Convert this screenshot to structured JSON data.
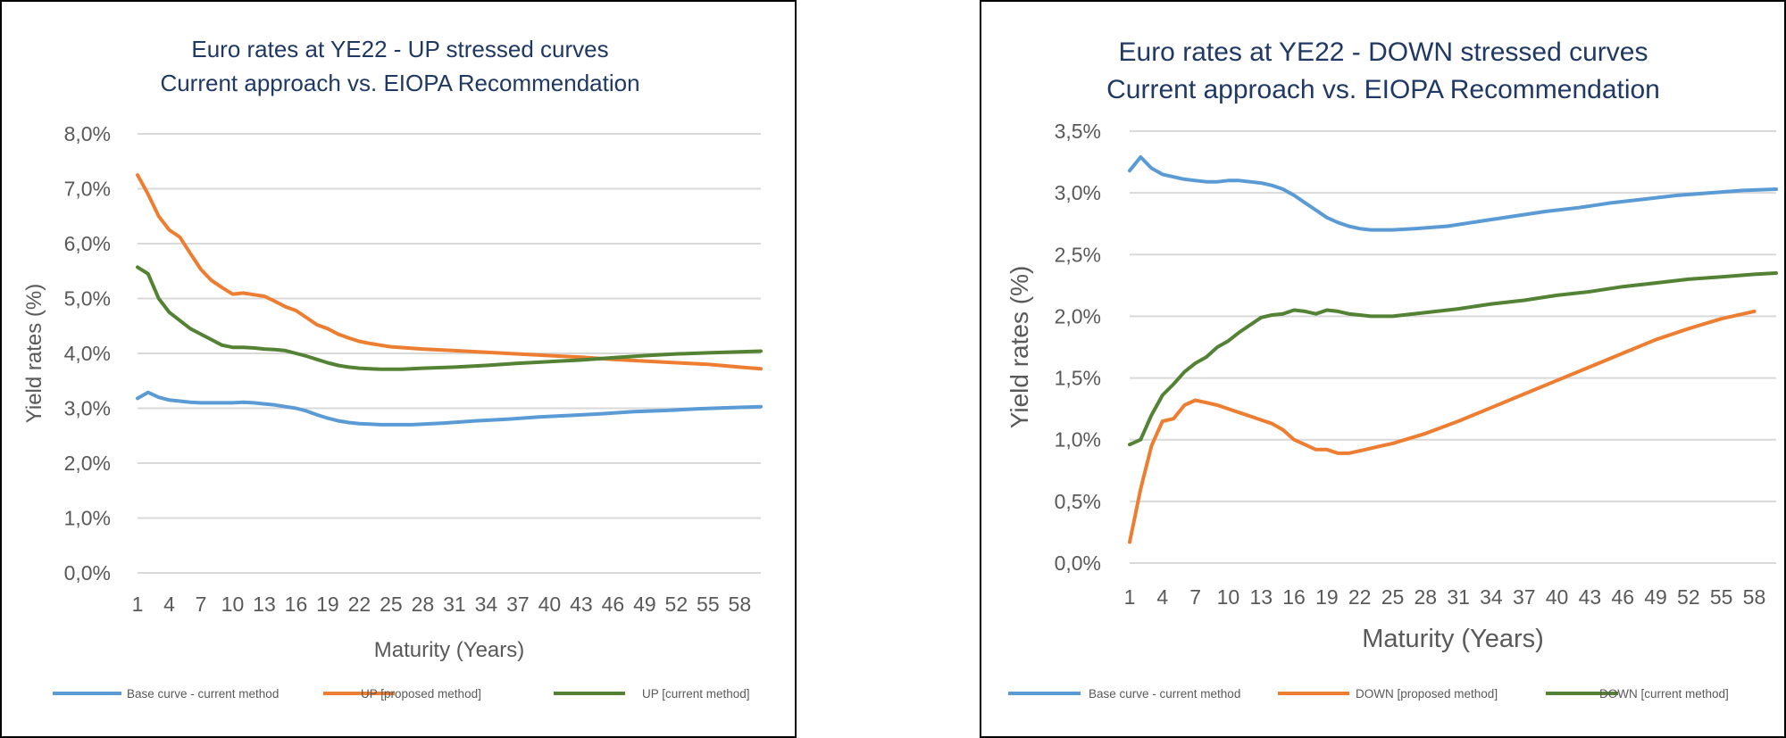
{
  "colors": {
    "base": "#5b9bd5",
    "proposed": "#ed7d31",
    "current": "#548235",
    "grid": "#d9d9d9",
    "title": "#1f3864",
    "text": "#595959"
  },
  "chart_data": [
    {
      "type": "line",
      "title_line1": "Euro rates at YE22 - UP stressed curves",
      "title_line2": "Current approach vs. EIOPA Recommendation",
      "xlabel": "Maturity (Years)",
      "ylabel": "Yield rates (%)",
      "x_range": [
        1,
        60
      ],
      "x_tick_labels": [
        "1",
        "4",
        "7",
        "10",
        "13",
        "16",
        "19",
        "22",
        "25",
        "28",
        "31",
        "34",
        "37",
        "40",
        "43",
        "46",
        "49",
        "52",
        "55",
        "58"
      ],
      "ylim": [
        0,
        8
      ],
      "y_ticks": [
        0,
        1,
        2,
        3,
        4,
        5,
        6,
        7,
        8
      ],
      "y_tick_labels": [
        "0,0%",
        "1,0%",
        "2,0%",
        "3,0%",
        "4,0%",
        "5,0%",
        "6,0%",
        "7,0%",
        "8,0%"
      ],
      "grid": true,
      "legend_position": "bottom",
      "series": [
        {
          "name": "Base curve - current method",
          "color_key": "base",
          "points": [
            [
              1,
              3.18
            ],
            [
              2,
              3.29
            ],
            [
              3,
              3.2
            ],
            [
              4,
              3.15
            ],
            [
              5,
              3.13
            ],
            [
              6,
              3.11
            ],
            [
              7,
              3.1
            ],
            [
              8,
              3.1
            ],
            [
              9,
              3.1
            ],
            [
              10,
              3.1
            ],
            [
              11,
              3.11
            ],
            [
              12,
              3.1
            ],
            [
              13,
              3.08
            ],
            [
              14,
              3.06
            ],
            [
              15,
              3.03
            ],
            [
              16,
              3.0
            ],
            [
              17,
              2.95
            ],
            [
              18,
              2.88
            ],
            [
              19,
              2.82
            ],
            [
              20,
              2.77
            ],
            [
              21,
              2.74
            ],
            [
              22,
              2.72
            ],
            [
              23,
              2.71
            ],
            [
              24,
              2.7
            ],
            [
              25,
              2.7
            ],
            [
              27,
              2.7
            ],
            [
              30,
              2.73
            ],
            [
              33,
              2.77
            ],
            [
              36,
              2.8
            ],
            [
              39,
              2.84
            ],
            [
              42,
              2.87
            ],
            [
              45,
              2.9
            ],
            [
              48,
              2.94
            ],
            [
              51,
              2.96
            ],
            [
              54,
              2.99
            ],
            [
              57,
              3.01
            ],
            [
              60,
              3.03
            ]
          ]
        },
        {
          "name": "UP [proposed method]",
          "color_key": "proposed",
          "points": [
            [
              1,
              7.25
            ],
            [
              2,
              6.9
            ],
            [
              3,
              6.5
            ],
            [
              4,
              6.25
            ],
            [
              5,
              6.12
            ],
            [
              6,
              5.82
            ],
            [
              7,
              5.53
            ],
            [
              8,
              5.33
            ],
            [
              9,
              5.2
            ],
            [
              10,
              5.08
            ],
            [
              11,
              5.1
            ],
            [
              12,
              5.07
            ],
            [
              13,
              5.04
            ],
            [
              14,
              4.95
            ],
            [
              15,
              4.85
            ],
            [
              16,
              4.78
            ],
            [
              17,
              4.65
            ],
            [
              18,
              4.52
            ],
            [
              19,
              4.45
            ],
            [
              20,
              4.35
            ],
            [
              21,
              4.28
            ],
            [
              22,
              4.22
            ],
            [
              23,
              4.18
            ],
            [
              24,
              4.15
            ],
            [
              25,
              4.12
            ],
            [
              28,
              4.08
            ],
            [
              31,
              4.05
            ],
            [
              34,
              4.02
            ],
            [
              37,
              3.99
            ],
            [
              40,
              3.96
            ],
            [
              43,
              3.93
            ],
            [
              46,
              3.89
            ],
            [
              49,
              3.86
            ],
            [
              52,
              3.83
            ],
            [
              55,
              3.8
            ],
            [
              58,
              3.75
            ],
            [
              60,
              3.72
            ]
          ]
        },
        {
          "name": "UP [current method]",
          "color_key": "current",
          "points": [
            [
              1,
              5.57
            ],
            [
              2,
              5.45
            ],
            [
              3,
              5.0
            ],
            [
              4,
              4.75
            ],
            [
              5,
              4.6
            ],
            [
              6,
              4.45
            ],
            [
              7,
              4.35
            ],
            [
              8,
              4.25
            ],
            [
              9,
              4.15
            ],
            [
              10,
              4.11
            ],
            [
              11,
              4.11
            ],
            [
              12,
              4.1
            ],
            [
              13,
              4.08
            ],
            [
              14,
              4.07
            ],
            [
              15,
              4.05
            ],
            [
              16,
              4.0
            ],
            [
              17,
              3.95
            ],
            [
              18,
              3.89
            ],
            [
              19,
              3.83
            ],
            [
              20,
              3.78
            ],
            [
              21,
              3.75
            ],
            [
              22,
              3.73
            ],
            [
              23,
              3.72
            ],
            [
              24,
              3.71
            ],
            [
              25,
              3.71
            ],
            [
              26,
              3.71
            ],
            [
              28,
              3.73
            ],
            [
              31,
              3.75
            ],
            [
              34,
              3.78
            ],
            [
              37,
              3.82
            ],
            [
              40,
              3.85
            ],
            [
              43,
              3.88
            ],
            [
              46,
              3.92
            ],
            [
              49,
              3.96
            ],
            [
              52,
              3.99
            ],
            [
              55,
              4.01
            ],
            [
              58,
              4.03
            ],
            [
              60,
              4.04
            ]
          ]
        }
      ]
    },
    {
      "type": "line",
      "title_line1": "Euro rates at YE22 - DOWN stressed curves",
      "title_line2": "Current approach vs. EIOPA Recommendation",
      "xlabel": "Maturity (Years)",
      "ylabel": "Yield rates (%)",
      "x_range": [
        1,
        60
      ],
      "x_tick_labels": [
        "1",
        "4",
        "7",
        "10",
        "13",
        "16",
        "19",
        "22",
        "25",
        "28",
        "31",
        "34",
        "37",
        "40",
        "43",
        "46",
        "49",
        "52",
        "55",
        "58"
      ],
      "ylim": [
        0,
        3.5
      ],
      "y_ticks": [
        0,
        0.5,
        1,
        1.5,
        2,
        2.5,
        3,
        3.5
      ],
      "y_tick_labels": [
        "0,0%",
        "0,5%",
        "1,0%",
        "1,5%",
        "2,0%",
        "2,5%",
        "3,0%",
        "3,5%"
      ],
      "grid": true,
      "legend_position": "bottom",
      "series": [
        {
          "name": "Base curve - current method",
          "color_key": "base",
          "points": [
            [
              1,
              3.18
            ],
            [
              2,
              3.29
            ],
            [
              3,
              3.2
            ],
            [
              4,
              3.15
            ],
            [
              5,
              3.13
            ],
            [
              6,
              3.11
            ],
            [
              7,
              3.1
            ],
            [
              8,
              3.09
            ],
            [
              9,
              3.09
            ],
            [
              10,
              3.1
            ],
            [
              11,
              3.1
            ],
            [
              12,
              3.09
            ],
            [
              13,
              3.08
            ],
            [
              14,
              3.06
            ],
            [
              15,
              3.03
            ],
            [
              16,
              2.98
            ],
            [
              17,
              2.92
            ],
            [
              18,
              2.86
            ],
            [
              19,
              2.8
            ],
            [
              20,
              2.76
            ],
            [
              21,
              2.73
            ],
            [
              22,
              2.71
            ],
            [
              23,
              2.7
            ],
            [
              24,
              2.7
            ],
            [
              25,
              2.7
            ],
            [
              27,
              2.71
            ],
            [
              30,
              2.73
            ],
            [
              33,
              2.77
            ],
            [
              36,
              2.81
            ],
            [
              39,
              2.85
            ],
            [
              42,
              2.88
            ],
            [
              45,
              2.92
            ],
            [
              48,
              2.95
            ],
            [
              51,
              2.98
            ],
            [
              54,
              3.0
            ],
            [
              57,
              3.02
            ],
            [
              60,
              3.03
            ]
          ]
        },
        {
          "name": "DOWN [proposed method]",
          "color_key": "proposed",
          "points": [
            [
              1,
              0.17
            ],
            [
              2,
              0.6
            ],
            [
              3,
              0.95
            ],
            [
              4,
              1.15
            ],
            [
              5,
              1.17
            ],
            [
              6,
              1.28
            ],
            [
              7,
              1.32
            ],
            [
              8,
              1.3
            ],
            [
              9,
              1.28
            ],
            [
              10,
              1.25
            ],
            [
              11,
              1.22
            ],
            [
              12,
              1.19
            ],
            [
              13,
              1.16
            ],
            [
              14,
              1.13
            ],
            [
              15,
              1.08
            ],
            [
              16,
              1.0
            ],
            [
              17,
              0.96
            ],
            [
              18,
              0.92
            ],
            [
              19,
              0.92
            ],
            [
              20,
              0.89
            ],
            [
              21,
              0.89
            ],
            [
              22,
              0.91
            ],
            [
              23,
              0.93
            ],
            [
              24,
              0.95
            ],
            [
              25,
              0.97
            ],
            [
              28,
              1.05
            ],
            [
              31,
              1.15
            ],
            [
              34,
              1.26
            ],
            [
              37,
              1.37
            ],
            [
              40,
              1.48
            ],
            [
              43,
              1.59
            ],
            [
              46,
              1.7
            ],
            [
              49,
              1.81
            ],
            [
              52,
              1.9
            ],
            [
              55,
              1.98
            ],
            [
              58,
              2.04
            ]
          ]
        },
        {
          "name": "DOWN [current method]",
          "color_key": "current",
          "points": [
            [
              1,
              0.96
            ],
            [
              2,
              1.0
            ],
            [
              3,
              1.2
            ],
            [
              4,
              1.36
            ],
            [
              5,
              1.45
            ],
            [
              6,
              1.55
            ],
            [
              7,
              1.62
            ],
            [
              8,
              1.67
            ],
            [
              9,
              1.75
            ],
            [
              10,
              1.8
            ],
            [
              11,
              1.87
            ],
            [
              12,
              1.93
            ],
            [
              13,
              1.99
            ],
            [
              14,
              2.01
            ],
            [
              15,
              2.02
            ],
            [
              16,
              2.05
            ],
            [
              17,
              2.04
            ],
            [
              18,
              2.02
            ],
            [
              19,
              2.05
            ],
            [
              20,
              2.04
            ],
            [
              21,
              2.02
            ],
            [
              22,
              2.01
            ],
            [
              23,
              2.0
            ],
            [
              24,
              2.0
            ],
            [
              25,
              2.0
            ],
            [
              28,
              2.03
            ],
            [
              31,
              2.06
            ],
            [
              34,
              2.1
            ],
            [
              37,
              2.13
            ],
            [
              40,
              2.17
            ],
            [
              43,
              2.2
            ],
            [
              46,
              2.24
            ],
            [
              49,
              2.27
            ],
            [
              52,
              2.3
            ],
            [
              55,
              2.32
            ],
            [
              58,
              2.34
            ],
            [
              60,
              2.35
            ]
          ]
        }
      ]
    }
  ]
}
